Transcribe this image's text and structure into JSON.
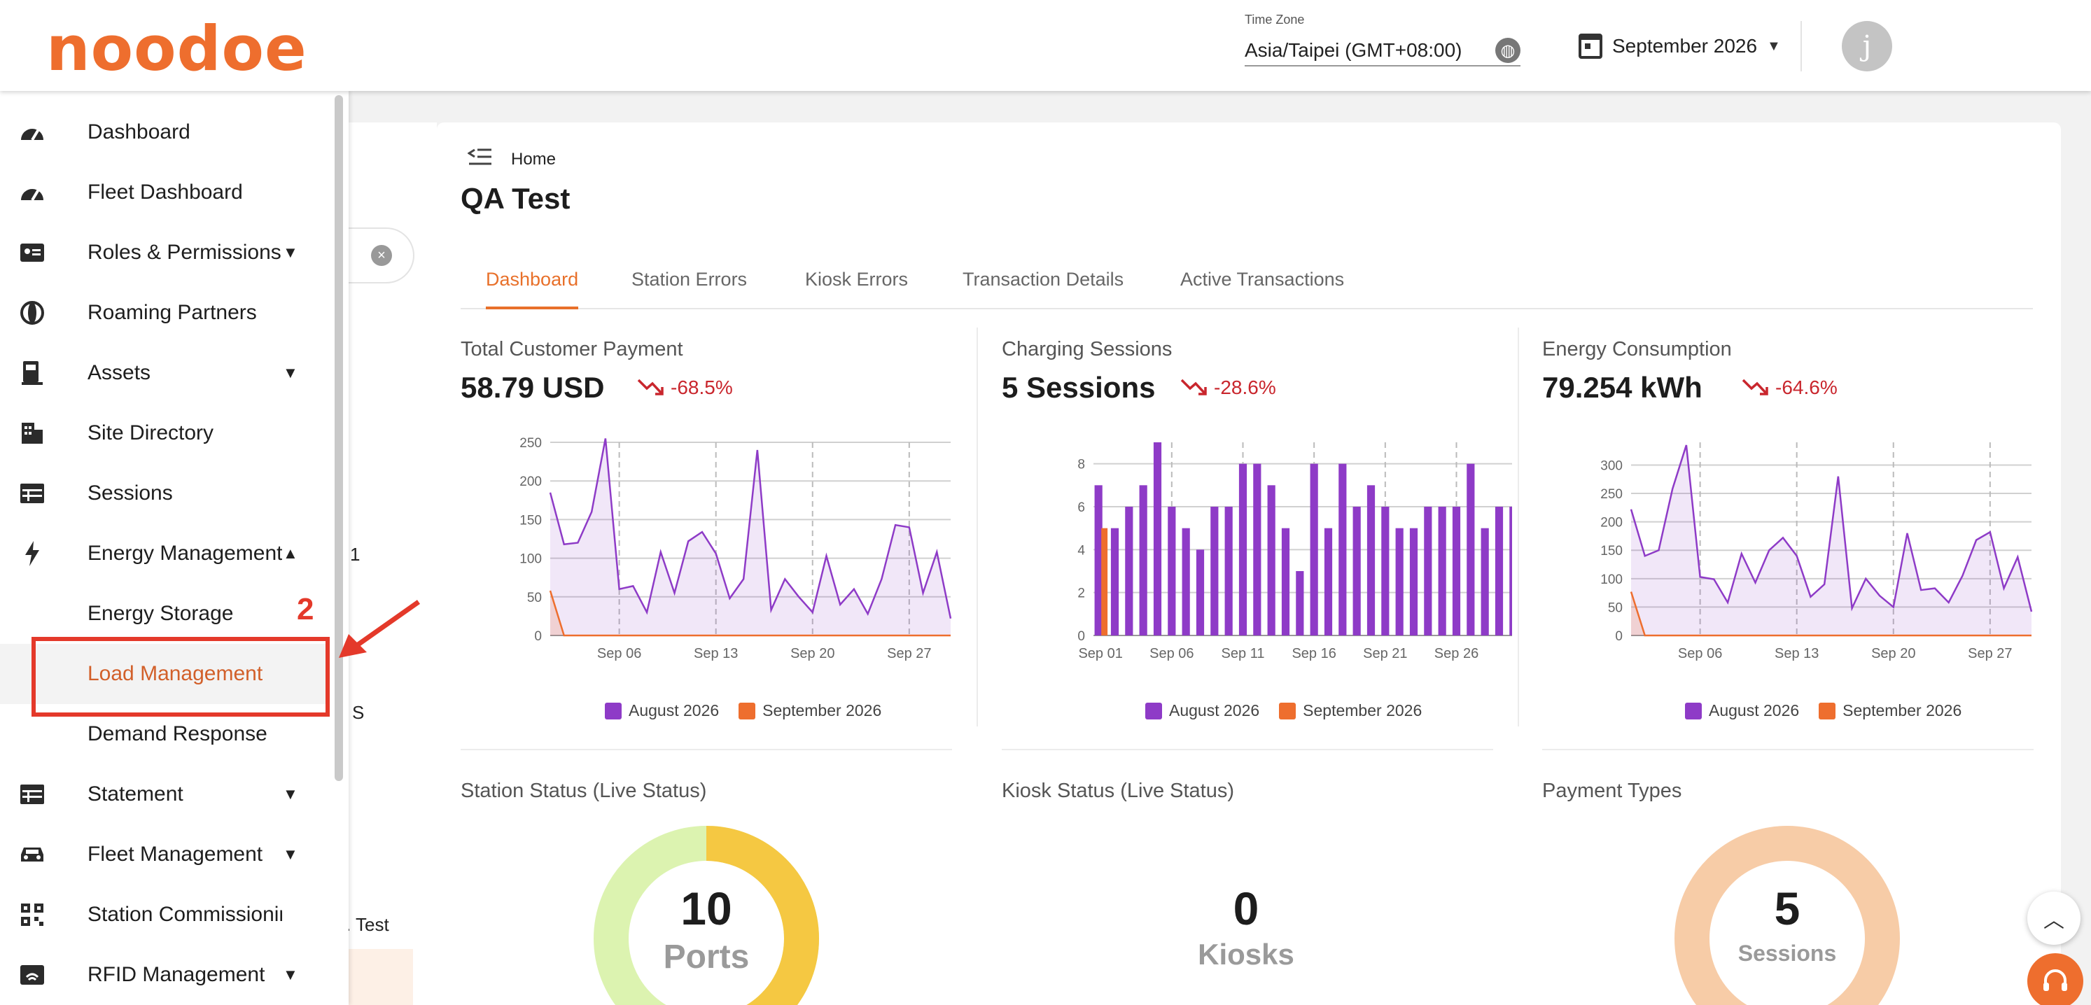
{
  "header": {
    "logo": "noodoe",
    "timezone_label": "Time Zone",
    "timezone_value": "Asia/Taipei (GMT+08:00)",
    "month": "September 2026",
    "avatar_initial": "j"
  },
  "sidebar": {
    "items": [
      {
        "label": "Dashboard",
        "icon": "speedometer-icon"
      },
      {
        "label": "Fleet Dashboard",
        "icon": "speedometer-icon"
      },
      {
        "label": "Roles & Permissions",
        "icon": "id-card-icon"
      },
      {
        "label": "Roaming Partners",
        "icon": "globe-icon"
      },
      {
        "label": "Assets",
        "icon": "charger-icon"
      },
      {
        "label": "Site Directory",
        "icon": "building-icon"
      },
      {
        "label": "Sessions",
        "icon": "table-icon"
      },
      {
        "label": "Energy Management",
        "icon": "bolt-icon"
      },
      {
        "label": "Energy Storage"
      },
      {
        "label": "Load Management"
      },
      {
        "label": "Demand Response"
      },
      {
        "label": "Statement",
        "icon": "table-icon"
      },
      {
        "label": "Fleet Management",
        "icon": "car-icon"
      },
      {
        "label": "Station Commissioning",
        "icon": "qr-icon"
      },
      {
        "label": "RFID Management",
        "icon": "rfid-icon"
      }
    ]
  },
  "annotation": {
    "step_number": "2",
    "color": "#e4392a"
  },
  "background_fragments": {
    "t1": "1",
    "t2": "S",
    "t3": ". Test"
  },
  "breadcrumb": {
    "home": "Home"
  },
  "page_title": "QA Test",
  "tabs": [
    "Dashboard",
    "Station Errors",
    "Kiosk Errors",
    "Transaction Details",
    "Active Transactions"
  ],
  "metrics": [
    {
      "title": "Total Customer Payment",
      "value": "58.79",
      "unit": "USD",
      "trend": "-68.5%"
    },
    {
      "title": "Charging Sessions",
      "value": "5",
      "unit": "Sessions",
      "trend": "-28.6%"
    },
    {
      "title": "Energy Consumption",
      "value": "79.254",
      "unit": "kWh",
      "trend": "-64.6%"
    }
  ],
  "legend": {
    "series1": "August 2026",
    "series2": "September 2026"
  },
  "colors": {
    "accent": "#e8702a",
    "series_aug": "#8e3bc7",
    "series_sep": "#ee6e2e",
    "trend_down": "#c9262d"
  },
  "status_cards": [
    {
      "title": "Station Status (Live Status)",
      "value": "10",
      "unit": "Ports"
    },
    {
      "title": "Kiosk Status (Live Status)",
      "value": "0",
      "unit": "Kiosks"
    },
    {
      "title": "Payment Types",
      "value": "5",
      "unit": "Sessions"
    }
  ],
  "chart_data": [
    {
      "type": "area",
      "title": "Total Customer Payment",
      "ylim": [
        0,
        250
      ],
      "yticks": [
        0,
        50,
        100,
        150,
        200,
        250
      ],
      "xticks": [
        "Sep 06",
        "Sep 13",
        "Sep 20",
        "Sep 27"
      ],
      "series": [
        {
          "name": "August 2026",
          "values": [
            185,
            118,
            120,
            160,
            255,
            60,
            64,
            30,
            108,
            55,
            122,
            134,
            106,
            48,
            73,
            240,
            33,
            73,
            50,
            30,
            103,
            40,
            60,
            28,
            73,
            143,
            140,
            55,
            108,
            22
          ]
        },
        {
          "name": "September 2026",
          "values": [
            58,
            0,
            0,
            0,
            0,
            0,
            0,
            0,
            0,
            0,
            0,
            0,
            0,
            0,
            0,
            0,
            0,
            0,
            0,
            0,
            0,
            0,
            0,
            0,
            0,
            0,
            0,
            0,
            0,
            0
          ]
        }
      ]
    },
    {
      "type": "bar",
      "title": "Charging Sessions",
      "ylim": [
        0,
        9
      ],
      "yticks": [
        0,
        2,
        4,
        6,
        8
      ],
      "xticks": [
        "Sep 01",
        "Sep 06",
        "Sep 11",
        "Sep 16",
        "Sep 21",
        "Sep 26"
      ],
      "series": [
        {
          "name": "August 2026",
          "values": [
            7,
            5,
            6,
            7,
            9,
            6,
            5,
            4,
            6,
            6,
            8,
            8,
            7,
            5,
            3,
            8,
            5,
            8,
            6,
            7,
            6,
            5,
            5,
            6,
            6,
            6,
            8,
            5,
            6,
            6
          ]
        },
        {
          "name": "September 2026",
          "values": [
            5,
            0,
            0,
            0,
            0,
            0,
            0,
            0,
            0,
            0,
            0,
            0,
            0,
            0,
            0,
            0,
            0,
            0,
            0,
            0,
            0,
            0,
            0,
            0,
            0,
            0,
            0,
            0,
            0,
            0
          ]
        }
      ]
    },
    {
      "type": "area",
      "title": "Energy Consumption",
      "ylim": [
        0,
        340
      ],
      "yticks": [
        0,
        50,
        100,
        150,
        200,
        250,
        300
      ],
      "xticks": [
        "Sep 06",
        "Sep 13",
        "Sep 20",
        "Sep 27"
      ],
      "series": [
        {
          "name": "August 2026",
          "values": [
            222,
            140,
            150,
            258,
            335,
            103,
            99,
            58,
            144,
            93,
            150,
            172,
            140,
            68,
            90,
            280,
            48,
            100,
            70,
            50,
            180,
            80,
            83,
            58,
            105,
            168,
            182,
            83,
            138,
            42
          ]
        },
        {
          "name": "September 2026",
          "values": [
            77,
            0,
            0,
            0,
            0,
            0,
            0,
            0,
            0,
            0,
            0,
            0,
            0,
            0,
            0,
            0,
            0,
            0,
            0,
            0,
            0,
            0,
            0,
            0,
            0,
            0,
            0,
            0,
            0,
            0
          ]
        }
      ]
    }
  ]
}
